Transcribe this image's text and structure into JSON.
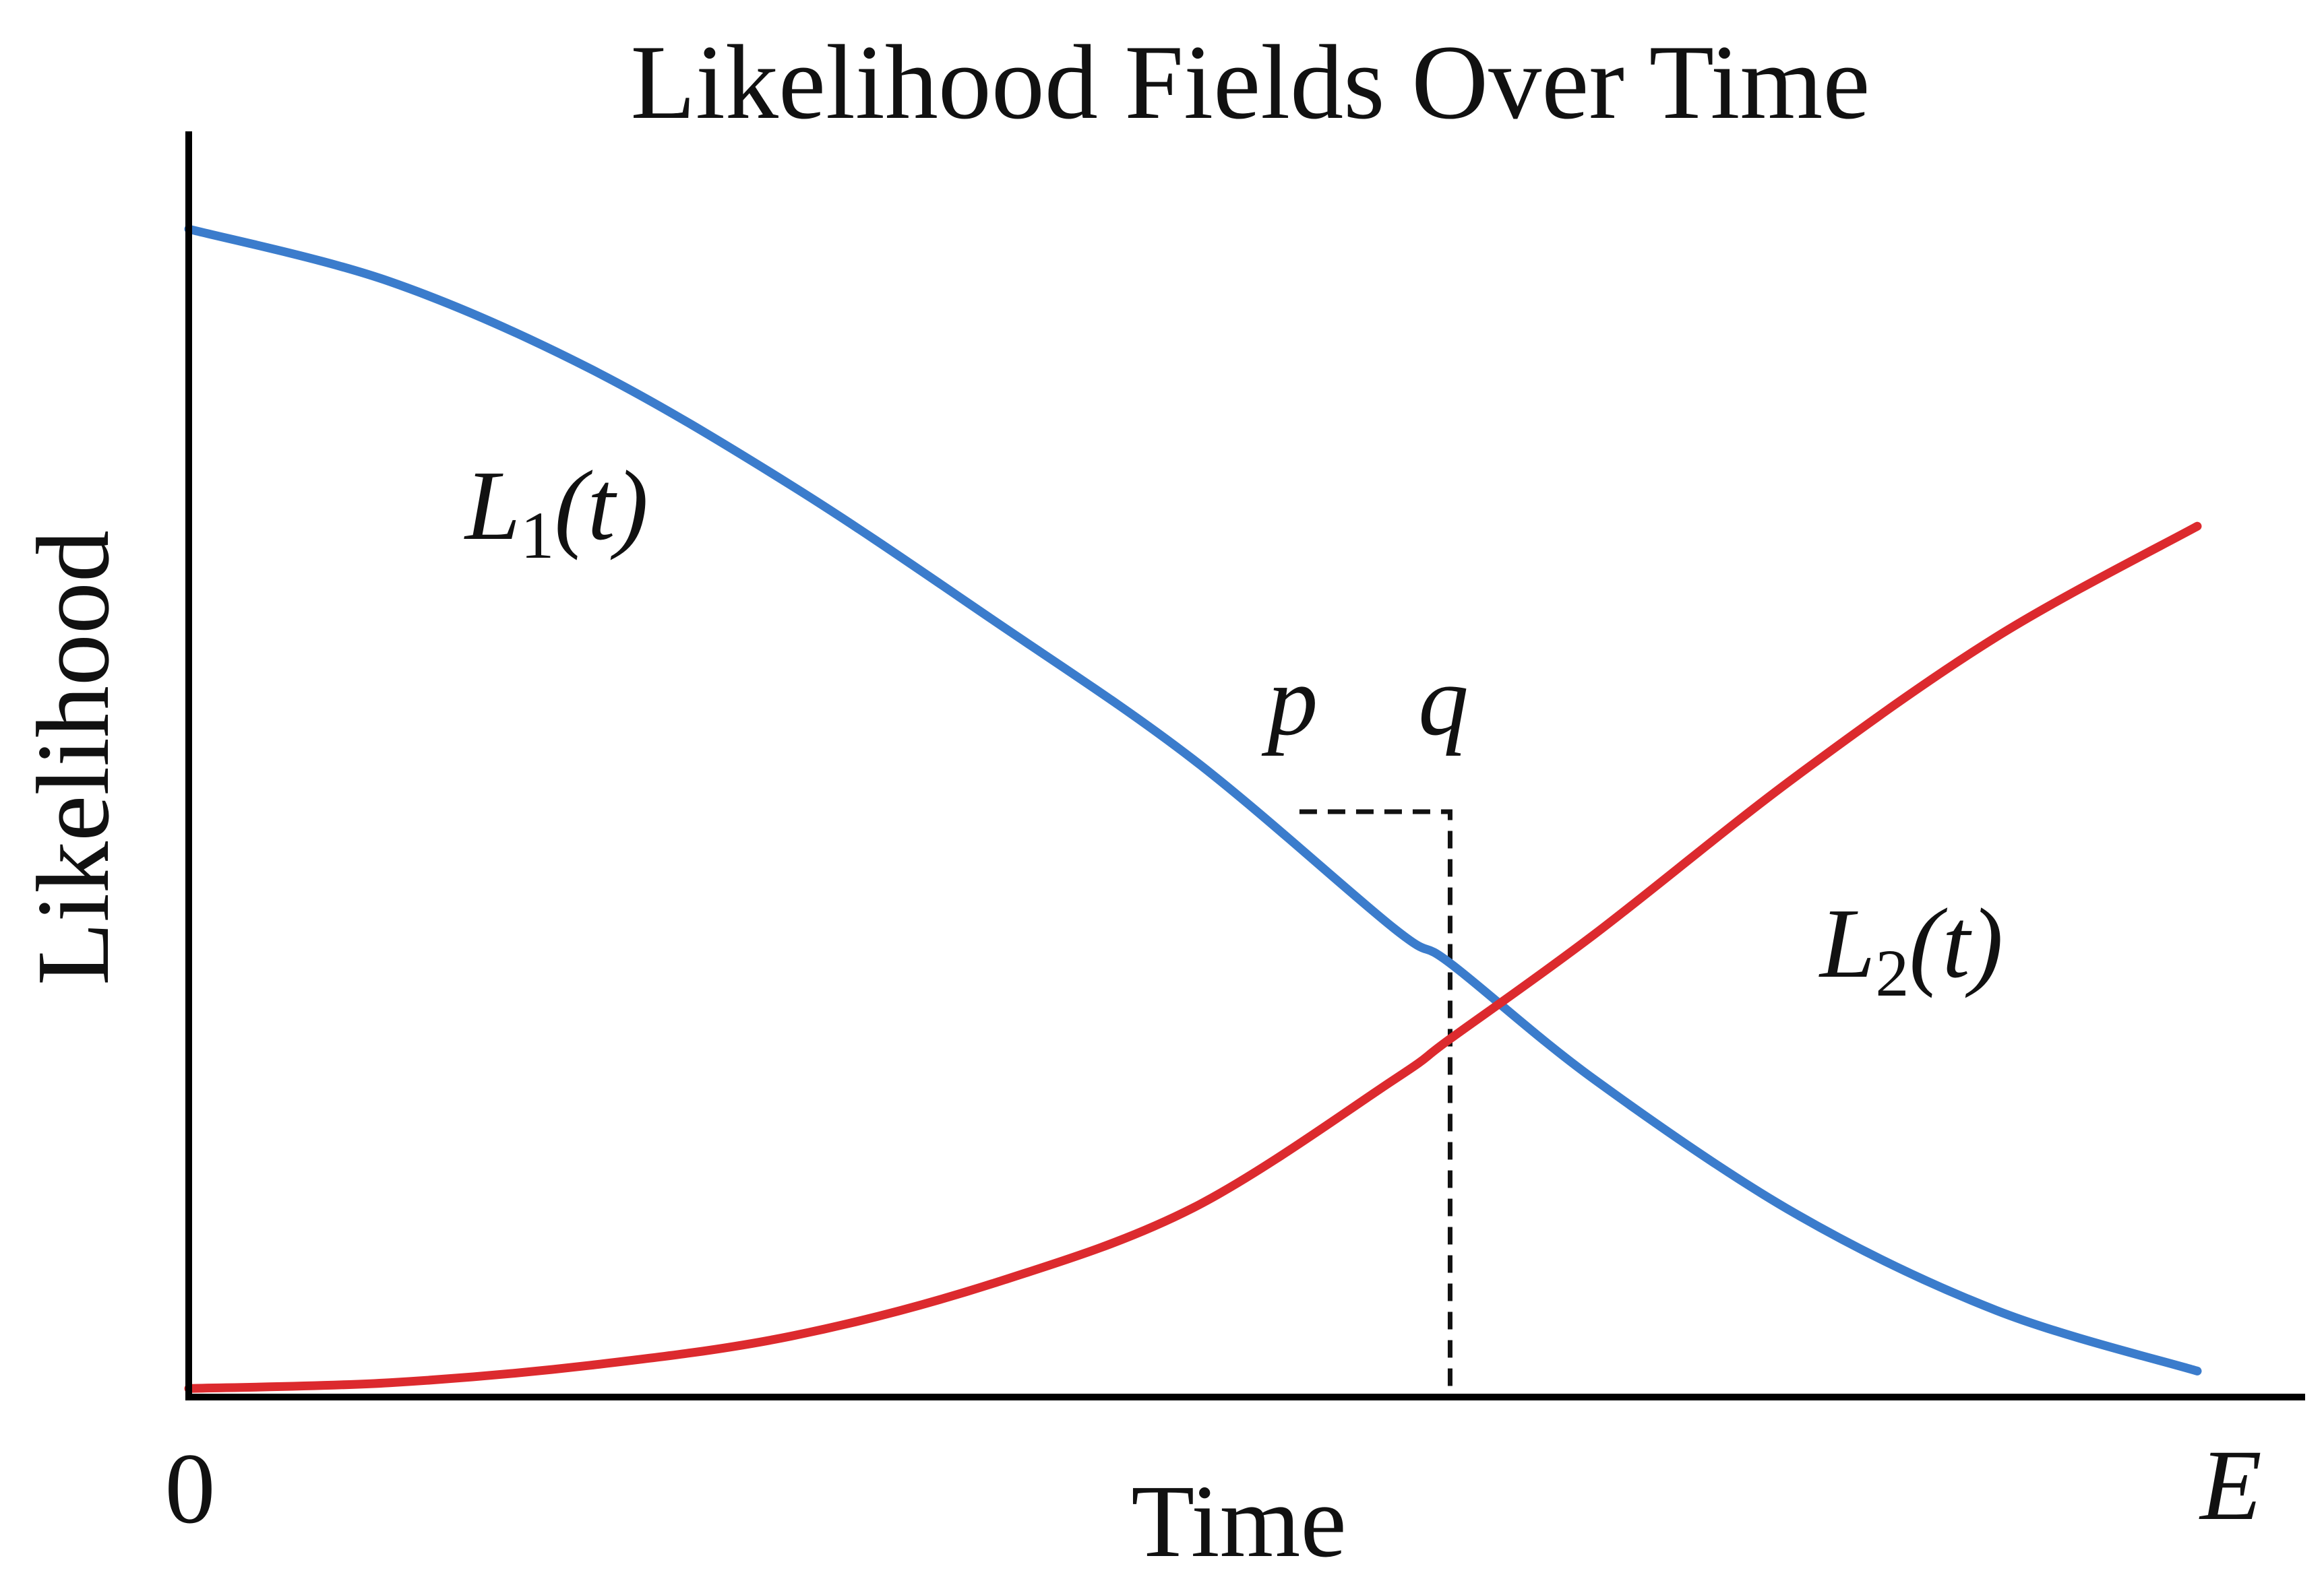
{
  "chart_data": {
    "type": "line",
    "title": "Likelihood Fields Over Time",
    "xlabel": "Time",
    "ylabel": "Likelihood",
    "x_ticks": [
      "0",
      "E"
    ],
    "xlim": [
      0,
      1
    ],
    "ylim": [
      0,
      1
    ],
    "grid": false,
    "legend": "none",
    "series": [
      {
        "name": "L1(t)",
        "label_main": "L",
        "label_sub": "1",
        "label_tail": "(t)",
        "color": "#3b7ccc",
        "x": [
          0,
          0.1,
          0.2,
          0.3,
          0.4,
          0.5,
          0.6,
          0.628,
          0.7,
          0.8,
          0.9,
          1.0
        ],
        "y": [
          1.0,
          0.955,
          0.88,
          0.78,
          0.665,
          0.545,
          0.4,
          0.37,
          0.27,
          0.155,
          0.072,
          0.02
        ]
      },
      {
        "name": "L2(t)",
        "label_main": "L",
        "label_sub": "2",
        "label_tail": "(t)",
        "color": "#dc2a2e",
        "x": [
          0,
          0.1,
          0.2,
          0.3,
          0.4,
          0.5,
          0.6,
          0.628,
          0.7,
          0.8,
          0.9,
          1.0
        ],
        "y": [
          0.005,
          0.01,
          0.025,
          0.05,
          0.095,
          0.16,
          0.27,
          0.305,
          0.395,
          0.53,
          0.65,
          0.745
        ]
      }
    ],
    "annotations": [
      {
        "label": "p",
        "x": 0.553,
        "y": 0.5
      },
      {
        "label": "q",
        "x": 0.628,
        "y": 0.5
      }
    ],
    "dashed_guide": {
      "x_start": 0.553,
      "x_end": 0.628,
      "y": 0.5
    }
  }
}
